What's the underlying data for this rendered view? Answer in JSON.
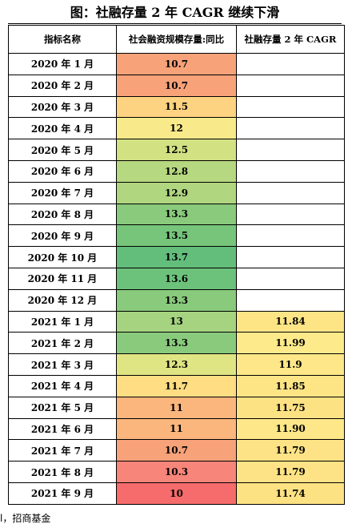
{
  "title": "图：社融存量 2 年 CAGR 继续下滑",
  "headers": [
    "指标名称",
    "社会融资规模存量:同比",
    "社融存量 2 年 CAGR"
  ],
  "rows": [
    {
      "label": "2020 年 1 月",
      "yoy": "10.7",
      "cagr": "",
      "yoy_color": "#f8a27a",
      "cagr_color": "#ffffff"
    },
    {
      "label": "2020 年 2 月",
      "yoy": "10.7",
      "cagr": "",
      "yoy_color": "#f8a27a",
      "cagr_color": "#ffffff"
    },
    {
      "label": "2020 年 3 月",
      "yoy": "11.5",
      "cagr": "",
      "yoy_color": "#fdd381",
      "cagr_color": "#ffffff"
    },
    {
      "label": "2020 年 4 月",
      "yoy": "12",
      "cagr": "",
      "yoy_color": "#f8ea8a",
      "cagr_color": "#ffffff"
    },
    {
      "label": "2020 年 5 月",
      "yoy": "12.5",
      "cagr": "",
      "yoy_color": "#d2e182",
      "cagr_color": "#ffffff"
    },
    {
      "label": "2020 年 6 月",
      "yoy": "12.8",
      "cagr": "",
      "yoy_color": "#b6d880",
      "cagr_color": "#ffffff"
    },
    {
      "label": "2020 年 7 月",
      "yoy": "12.9",
      "cagr": "",
      "yoy_color": "#b0d67f",
      "cagr_color": "#ffffff"
    },
    {
      "label": "2020 年 8 月",
      "yoy": "13.3",
      "cagr": "",
      "yoy_color": "#89ca7c",
      "cagr_color": "#ffffff"
    },
    {
      "label": "2020 年 9 月",
      "yoy": "13.5",
      "cagr": "",
      "yoy_color": "#76c57b",
      "cagr_color": "#ffffff"
    },
    {
      "label": "2020 年 10 月",
      "yoy": "13.7",
      "cagr": "",
      "yoy_color": "#63be7b",
      "cagr_color": "#ffffff"
    },
    {
      "label": "2020 年 11 月",
      "yoy": "13.6",
      "cagr": "",
      "yoy_color": "#6dc27b",
      "cagr_color": "#ffffff"
    },
    {
      "label": "2020 年 12 月",
      "yoy": "13.3",
      "cagr": "",
      "yoy_color": "#89ca7c",
      "cagr_color": "#ffffff"
    },
    {
      "label": "2021 年 1 月",
      "yoy": "13",
      "cagr": "11.84",
      "yoy_color": "#a5d37f",
      "cagr_color": "#fde586"
    },
    {
      "label": "2021 年 2 月",
      "yoy": "13.3",
      "cagr": "11.99",
      "yoy_color": "#89ca7c",
      "cagr_color": "#fdea8a"
    },
    {
      "label": "2021 年 3 月",
      "yoy": "12.3",
      "cagr": "11.9",
      "yoy_color": "#e0e584",
      "cagr_color": "#fde788"
    },
    {
      "label": "2021 年 4 月",
      "yoy": "11.7",
      "cagr": "11.85",
      "yoy_color": "#fedd83",
      "cagr_color": "#fde586"
    },
    {
      "label": "2021 年 5 月",
      "yoy": "11",
      "cagr": "11.75",
      "yoy_color": "#fab67c",
      "cagr_color": "#fde284"
    },
    {
      "label": "2021 年 6 月",
      "yoy": "11",
      "cagr": "11.90",
      "yoy_color": "#fab67c",
      "cagr_color": "#fde788"
    },
    {
      "label": "2021 年 7 月",
      "yoy": "10.7",
      "cagr": "11.79",
      "yoy_color": "#f8a27a",
      "cagr_color": "#fde385"
    },
    {
      "label": "2021 年 8 月",
      "yoy": "10.3",
      "cagr": "11.79",
      "yoy_color": "#f7857a",
      "cagr_color": "#fde385"
    },
    {
      "label": "2021 年 9 月",
      "yoy": "10",
      "cagr": "11.74",
      "yoy_color": "#f66b6b",
      "cagr_color": "#fde284"
    }
  ],
  "footer": "l，招商基金"
}
